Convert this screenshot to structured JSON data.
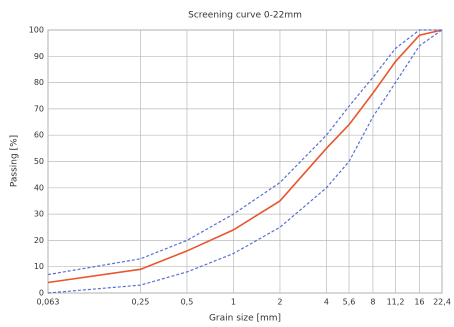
{
  "chart_data": {
    "type": "line",
    "title": "Screening curve 0-22mm",
    "x_label": "Grain size [mm]",
    "y_label": "Passing [%]",
    "x_scale": "log",
    "grid": true,
    "x": [
      0.063,
      0.25,
      0.5,
      1,
      2,
      4,
      5.6,
      8,
      11.2,
      16,
      22.4
    ],
    "xlim": [
      0.063,
      22.4
    ],
    "xticks": [
      {
        "value": 0.063,
        "label": "0,063"
      },
      {
        "value": 0.25,
        "label": "0,25"
      },
      {
        "value": 0.5,
        "label": "0,5"
      },
      1,
      2,
      4,
      {
        "value": 5.6,
        "label": "5,6"
      },
      8,
      {
        "value": 11.2,
        "label": "11,2"
      },
      16,
      {
        "value": 22.4,
        "label": "22,4"
      }
    ],
    "ylim": [
      0,
      100
    ],
    "yticks": [
      0,
      10,
      20,
      30,
      40,
      50,
      60,
      70,
      80,
      90,
      100
    ],
    "series": [
      {
        "color": "#e8562e",
        "style": "solid",
        "values": [
          4,
          9,
          16,
          24,
          35,
          55,
          64,
          76,
          88,
          98,
          100
        ]
      },
      {
        "color": "#5a6fd0",
        "style": "dashed",
        "values": [
          7,
          13,
          20,
          30,
          42,
          60,
          71,
          82,
          93,
          100,
          100
        ]
      },
      {
        "color": "#5a6fd0",
        "style": "dashed",
        "values": [
          0,
          3,
          8,
          15,
          25,
          40,
          50,
          67,
          80,
          94,
          100
        ]
      }
    ]
  }
}
